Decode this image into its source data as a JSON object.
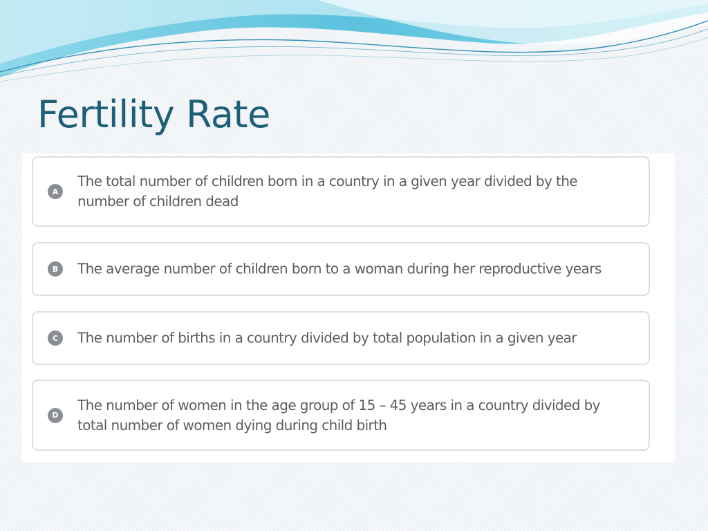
{
  "slide": {
    "title": "Fertility Rate"
  },
  "colors": {
    "title": "#1d5f76",
    "wave_light": "#c6ecf5",
    "wave_mid": "#7fd2e6",
    "wave_dark": "#3fa5c6",
    "card_border": "#dcdee2",
    "badge": "#8a8d92",
    "option_text": "#5a5d62"
  },
  "quiz": {
    "options": [
      {
        "letter": "A",
        "text": "The total number of children born in a country in a given year divided by the number of children dead"
      },
      {
        "letter": "B",
        "text": "The average number of children born to a woman during her reproductive years"
      },
      {
        "letter": "C",
        "text": "The number of births in a country divided by total population in a given year"
      },
      {
        "letter": "D",
        "text": "The number of women in the age group of 15 – 45 years in a country divided by total number of women dying during child birth"
      }
    ]
  }
}
